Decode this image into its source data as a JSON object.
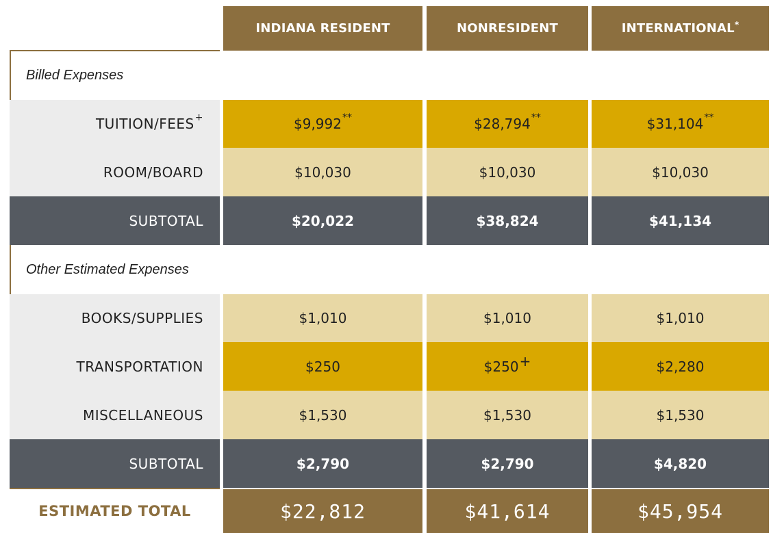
{
  "columns": [
    {
      "label": "INDIANA RESIDENT",
      "sup": ""
    },
    {
      "label": "NONRESIDENT",
      "sup": ""
    },
    {
      "label": "INTERNATIONAL",
      "sup": "*"
    }
  ],
  "sections": {
    "billed": "Billed Expenses",
    "other": "Other Estimated Expenses"
  },
  "rows": {
    "tuition": {
      "label": "TUITION/FEES",
      "label_mark": "+",
      "values": [
        "$9,992",
        "$28,794",
        "$31,104"
      ],
      "marks": [
        "**",
        "**",
        "**"
      ]
    },
    "room": {
      "label": "ROOM/BOARD",
      "values": [
        "$10,030",
        "$10,030",
        "$10,030"
      ]
    },
    "subtotal1": {
      "label": "SUBTOTAL",
      "values": [
        "$20,022",
        "$38,824",
        "$41,134"
      ]
    },
    "books": {
      "label": "BOOKS/SUPPLIES",
      "values": [
        "$1,010",
        "$1,010",
        "$1,010"
      ]
    },
    "transport": {
      "label": "TRANSPORTATION",
      "values": [
        "$250",
        "$250",
        "$2,280"
      ],
      "marks": [
        "",
        "+",
        ""
      ]
    },
    "misc": {
      "label": "MISCELLANEOUS",
      "values": [
        "$1,530",
        "$1,530",
        "$1,530"
      ]
    },
    "subtotal2": {
      "label": "SUBTOTAL",
      "values": [
        "$2,790",
        "$2,790",
        "$4,820"
      ]
    },
    "total": {
      "label": "ESTIMATED TOTAL",
      "values": [
        "$22,812",
        "$41,614",
        "$45,954"
      ]
    }
  },
  "colors": {
    "brown": "#8c6f3f",
    "gold": "#d9a800",
    "light_gold": "#e8d8a5",
    "dark_gray": "#555a61",
    "light_gray": "#ececec"
  }
}
